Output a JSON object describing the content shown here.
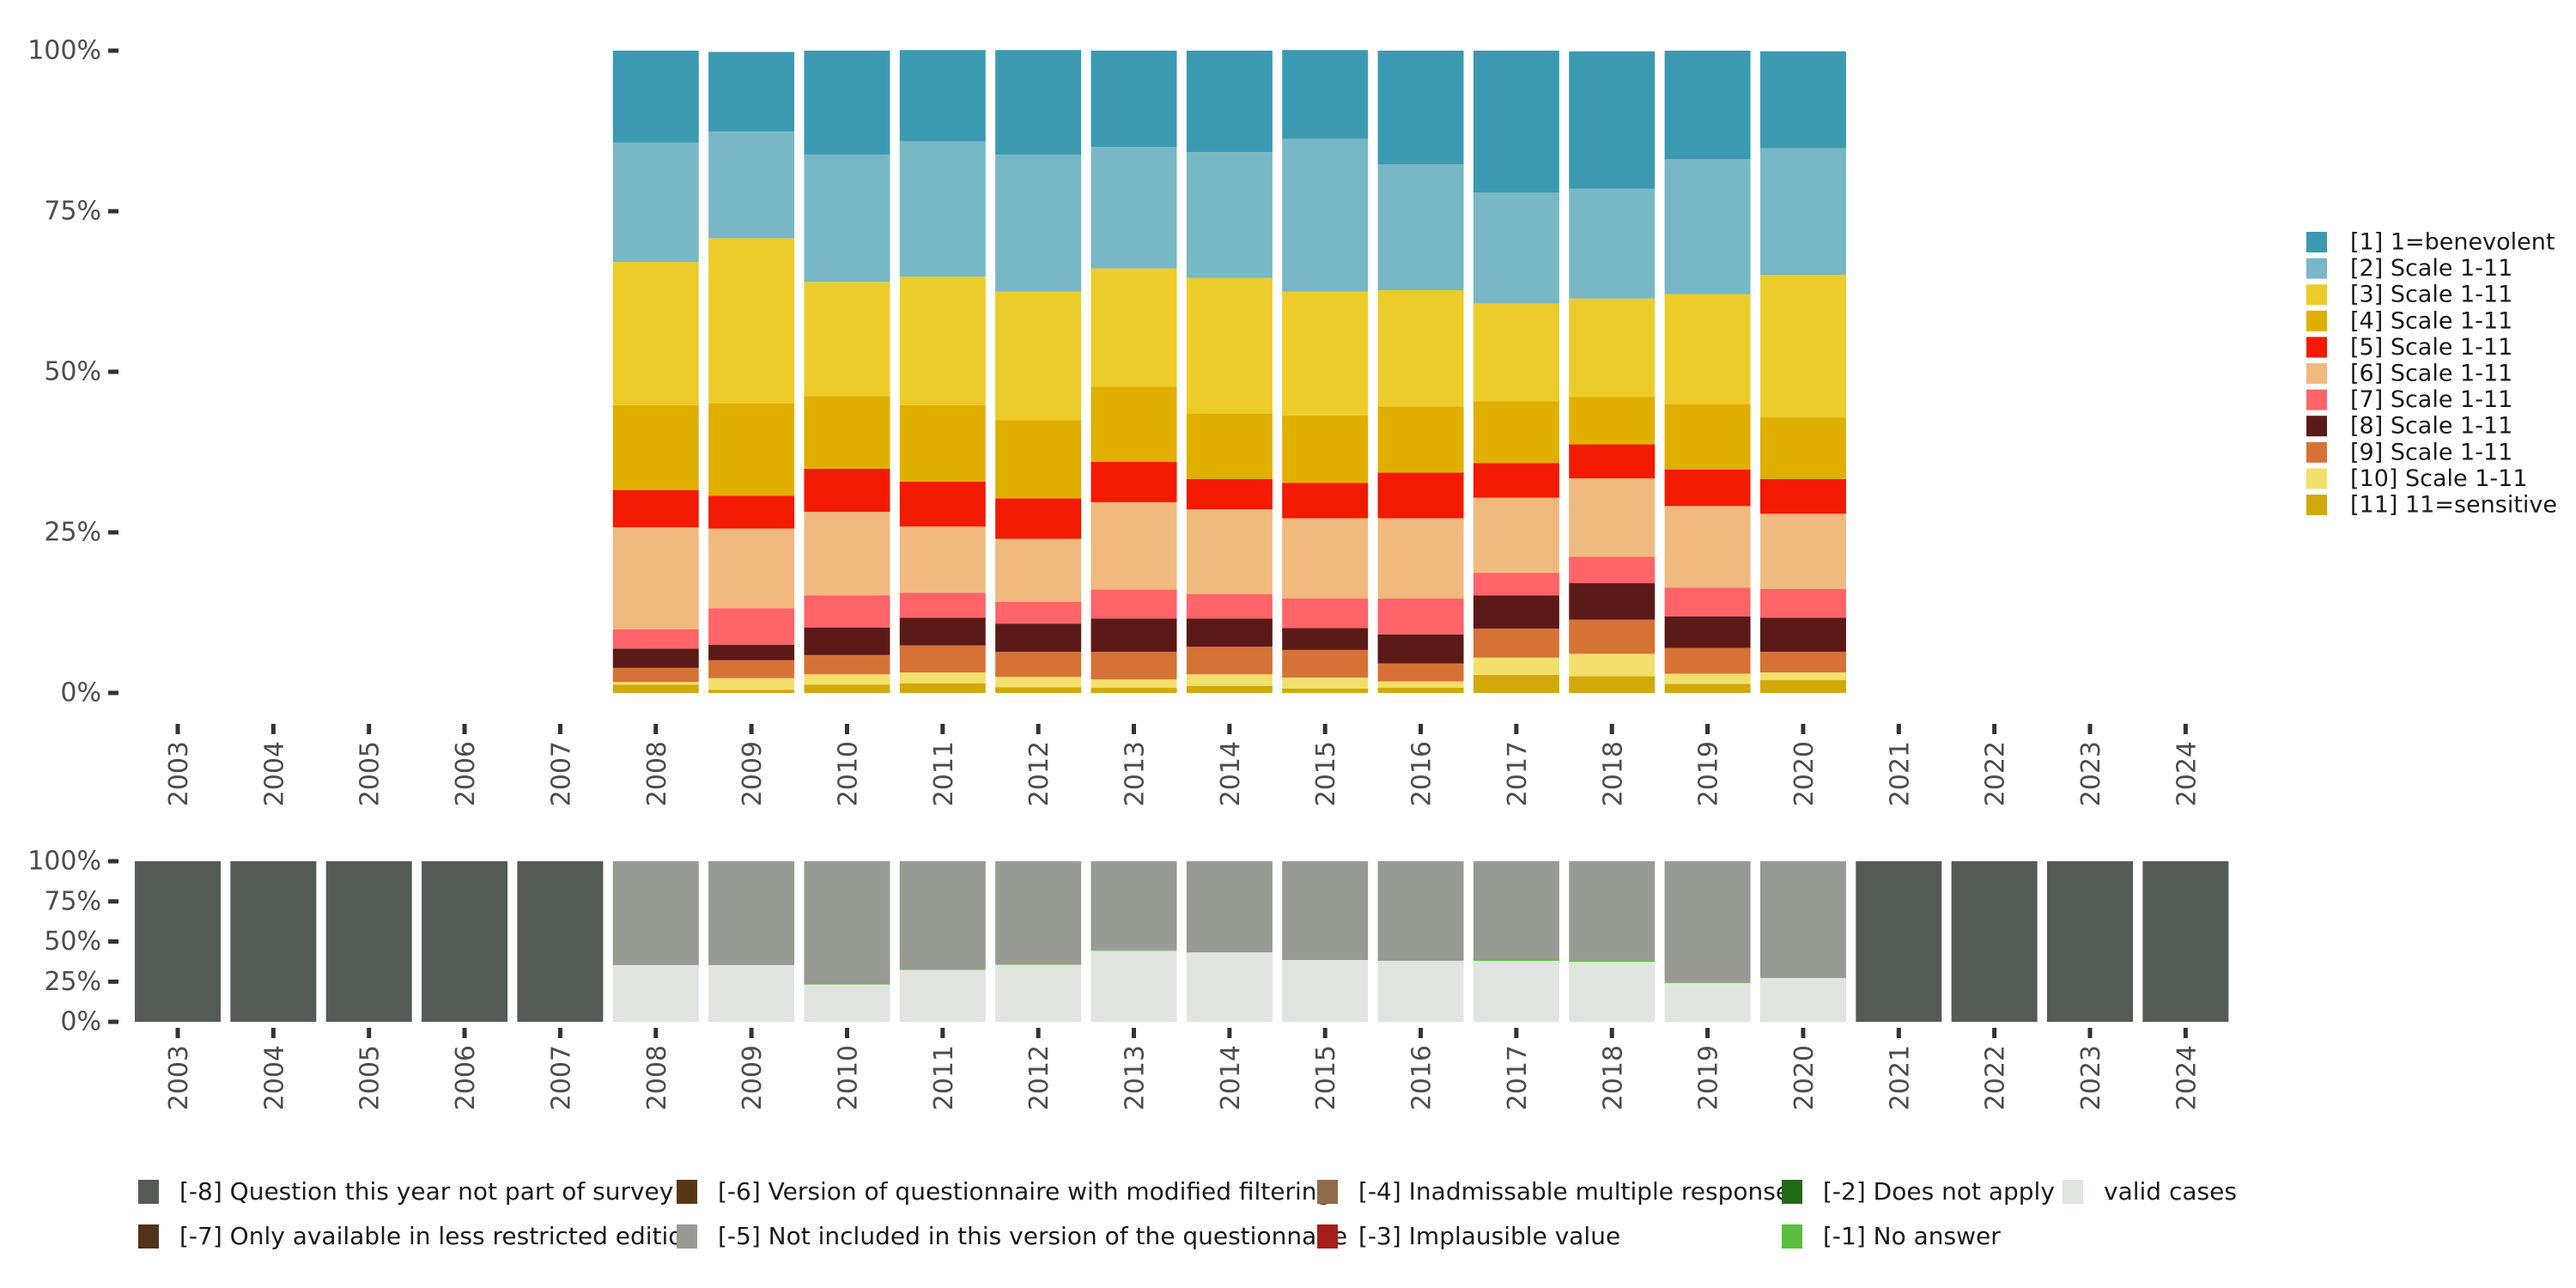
{
  "chart_data": [
    {
      "type": "bar",
      "stacked": true,
      "normalized": true,
      "title": "",
      "xlabel": "",
      "ylabel": "",
      "ylim": [
        0,
        100
      ],
      "yticks": [
        "0%",
        "25%",
        "50%",
        "75%",
        "100%"
      ],
      "categories": [
        "2003",
        "2004",
        "2005",
        "2006",
        "2007",
        "2008",
        "2009",
        "2010",
        "2011",
        "2012",
        "2013",
        "2014",
        "2015",
        "2016",
        "2017",
        "2018",
        "2019",
        "2020",
        "2021",
        "2022",
        "2023",
        "2024"
      ],
      "legend_position": "right",
      "series": [
        {
          "name": "[1] 1=benevolent",
          "color": "#3B9AB2",
          "values": [
            null,
            null,
            null,
            null,
            null,
            14.3,
            12.4,
            16.2,
            14.2,
            16.3,
            15.0,
            15.8,
            13.8,
            17.7,
            22.1,
            21.4,
            16.9,
            15.1,
            null,
            null,
            null,
            null
          ]
        },
        {
          "name": "[2] Scale 1-11",
          "color": "#78B7C5",
          "values": [
            null,
            null,
            null,
            null,
            null,
            18.6,
            16.6,
            19.8,
            21.1,
            21.3,
            18.9,
            19.6,
            23.8,
            19.6,
            17.3,
            17.1,
            21.0,
            19.7,
            null,
            null,
            null,
            null
          ]
        },
        {
          "name": "[3] Scale 1-11",
          "color": "#EBCC2A",
          "values": [
            null,
            null,
            null,
            null,
            null,
            22.3,
            25.7,
            17.8,
            20.0,
            20.0,
            18.4,
            21.1,
            19.3,
            18.1,
            15.2,
            15.3,
            17.1,
            22.2,
            null,
            null,
            null,
            null
          ]
        },
        {
          "name": "[4] Scale 1-11",
          "color": "#E1AF00",
          "values": [
            null,
            null,
            null,
            null,
            null,
            13.2,
            14.4,
            11.3,
            11.9,
            12.2,
            11.7,
            10.2,
            10.5,
            10.3,
            9.6,
            7.4,
            10.2,
            9.6,
            null,
            null,
            null,
            null
          ]
        },
        {
          "name": "[5] Scale 1-11",
          "color": "#F21A00",
          "values": [
            null,
            null,
            null,
            null,
            null,
            5.8,
            5.1,
            6.7,
            7.0,
            6.3,
            6.3,
            4.7,
            5.5,
            7.1,
            5.4,
            5.3,
            5.7,
            5.4,
            null,
            null,
            null,
            null
          ]
        },
        {
          "name": "[6] Scale 1-11",
          "color": "#F0BA7E",
          "values": [
            null,
            null,
            null,
            null,
            null,
            15.9,
            12.4,
            13.0,
            10.3,
            9.8,
            13.6,
            13.2,
            12.5,
            12.5,
            11.7,
            12.2,
            12.7,
            11.7,
            null,
            null,
            null,
            null
          ]
        },
        {
          "name": "[7] Scale 1-11",
          "color": "#FE6468",
          "values": [
            null,
            null,
            null,
            null,
            null,
            3.0,
            5.7,
            5.0,
            3.9,
            3.4,
            4.5,
            3.8,
            4.6,
            5.6,
            3.5,
            4.1,
            4.5,
            4.5,
            null,
            null,
            null,
            null
          ]
        },
        {
          "name": "[8] Scale 1-11",
          "color": "#5B1A18",
          "values": [
            null,
            null,
            null,
            null,
            null,
            3.0,
            2.4,
            4.3,
            4.3,
            4.4,
            5.2,
            4.4,
            3.4,
            4.5,
            5.2,
            5.7,
            4.9,
            5.3,
            null,
            null,
            null,
            null
          ]
        },
        {
          "name": "[9] Scale 1-11",
          "color": "#D67236",
          "values": [
            null,
            null,
            null,
            null,
            null,
            2.2,
            2.8,
            3.0,
            4.2,
            3.9,
            4.3,
            4.3,
            4.3,
            2.8,
            4.5,
            5.3,
            4.0,
            3.2,
            null,
            null,
            null,
            null
          ]
        },
        {
          "name": "[10] Scale 1-11",
          "color": "#F3DF6C",
          "values": [
            null,
            null,
            null,
            null,
            null,
            0.4,
            1.8,
            1.6,
            1.7,
            1.6,
            1.3,
            1.8,
            1.7,
            1.0,
            2.7,
            3.5,
            1.6,
            1.2,
            null,
            null,
            null,
            null
          ]
        },
        {
          "name": "[11] 11=sensitive",
          "color": "#D1A90A",
          "values": [
            null,
            null,
            null,
            null,
            null,
            1.3,
            0.5,
            1.3,
            1.5,
            0.9,
            0.8,
            1.1,
            0.7,
            0.8,
            2.8,
            2.6,
            1.4,
            2.0,
            null,
            null,
            null,
            null
          ]
        }
      ]
    },
    {
      "type": "bar",
      "stacked": true,
      "normalized": true,
      "title": "",
      "xlabel": "",
      "ylabel": "",
      "ylim": [
        0,
        100
      ],
      "yticks": [
        "0%",
        "25%",
        "50%",
        "75%",
        "100%"
      ],
      "categories": [
        "2003",
        "2004",
        "2005",
        "2006",
        "2007",
        "2008",
        "2009",
        "2010",
        "2011",
        "2012",
        "2013",
        "2014",
        "2015",
        "2016",
        "2017",
        "2018",
        "2019",
        "2020",
        "2021",
        "2022",
        "2023",
        "2024"
      ],
      "legend_position": "bottom",
      "series": [
        {
          "name": "[-8] Question this year not part of survey",
          "color": "#545B55",
          "values": [
            100,
            100,
            100,
            100,
            100,
            0,
            0,
            0,
            0,
            0,
            0,
            0,
            0,
            0,
            0,
            0,
            0,
            0,
            100,
            100,
            100,
            100
          ]
        },
        {
          "name": "[-7] Only available in less restricted edition",
          "color": "#4F331A",
          "values": [
            0,
            0,
            0,
            0,
            0,
            0,
            0,
            0,
            0,
            0,
            0,
            0,
            0,
            0,
            0,
            0,
            0,
            0,
            0,
            0,
            0,
            0
          ]
        },
        {
          "name": "[-6] Version of questionnaire with modified filtering",
          "color": "#583717",
          "values": [
            0,
            0,
            0,
            0,
            0,
            0,
            0,
            0,
            0,
            0,
            0,
            0,
            0,
            0,
            0,
            0,
            0,
            0,
            0,
            0,
            0,
            0
          ]
        },
        {
          "name": "[-5] Not included in this version of the questionnaire",
          "color": "#979B93",
          "values": [
            0,
            0,
            0,
            0,
            0,
            64.7,
            64.7,
            76.5,
            67.4,
            64.2,
            55.5,
            56.7,
            61.5,
            62.0,
            61.0,
            61.6,
            75.5,
            72.7,
            0,
            0,
            0,
            0
          ]
        },
        {
          "name": "[-4] Inadmissable multiple response",
          "color": "#8E6C4A",
          "values": [
            0,
            0,
            0,
            0,
            0,
            0,
            0,
            0,
            0,
            0,
            0,
            0,
            0,
            0,
            0,
            0,
            0,
            0,
            0,
            0,
            0,
            0
          ]
        },
        {
          "name": "[-3] Implausible value",
          "color": "#A61D1C",
          "values": [
            0,
            0,
            0,
            0,
            0,
            0,
            0,
            0,
            0,
            0,
            0,
            0,
            0,
            0,
            0,
            0,
            0,
            0,
            0,
            0,
            0,
            0
          ]
        },
        {
          "name": "[-2] Does not apply",
          "color": "#216A15",
          "values": [
            0,
            0,
            0,
            0,
            0,
            0,
            0,
            0,
            0,
            0,
            0,
            0,
            0,
            0,
            0,
            0,
            0,
            0,
            0,
            0,
            0,
            0
          ]
        },
        {
          "name": "[-1] No answer",
          "color": "#5BBD3E",
          "values": [
            0,
            0,
            0,
            0,
            0,
            0,
            0,
            0.3,
            0.3,
            0.3,
            0.3,
            0,
            0,
            0,
            1.0,
            1.0,
            0.4,
            0,
            0,
            0,
            0,
            0
          ]
        },
        {
          "name": "valid cases",
          "color": "#E0E5E0",
          "values": [
            0,
            0,
            0,
            0,
            0,
            35.3,
            35.3,
            23.2,
            32.3,
            35.5,
            44.2,
            43.3,
            38.5,
            38.0,
            38.0,
            37.4,
            24.1,
            27.3,
            0,
            0,
            0,
            0
          ]
        }
      ],
      "legend_order": [
        "[-8] Question this year not part of survey",
        "[-6] Version of questionnaire with modified filtering",
        "[-4] Inadmissable multiple response",
        "[-2] Does not apply",
        "valid cases",
        "[-7] Only available in less restricted edition",
        "[-5] Not included in this version of the questionnaire",
        "[-3] Implausible value",
        "[-1] No answer"
      ]
    }
  ]
}
